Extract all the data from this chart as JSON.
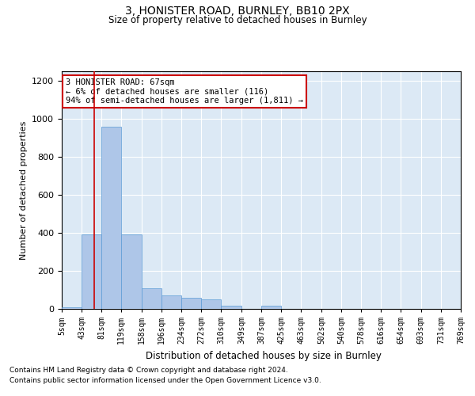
{
  "title1": "3, HONISTER ROAD, BURNLEY, BB10 2PX",
  "title2": "Size of property relative to detached houses in Burnley",
  "xlabel": "Distribution of detached houses by size in Burnley",
  "ylabel": "Number of detached properties",
  "footnote1": "Contains HM Land Registry data © Crown copyright and database right 2024.",
  "footnote2": "Contains public sector information licensed under the Open Government Licence v3.0.",
  "annotation_title": "3 HONISTER ROAD: 67sqm",
  "annotation_line1": "← 6% of detached houses are smaller (116)",
  "annotation_line2": "94% of semi-detached houses are larger (1,811) →",
  "bar_color": "#aec6e8",
  "bar_edge_color": "#5b9bd5",
  "bg_color": "#dce9f5",
  "red_line_color": "#cc0000",
  "annotation_box_color": "#ffffff",
  "annotation_box_edge": "#cc0000",
  "bins": [
    5,
    43,
    81,
    119,
    158,
    196,
    234,
    272,
    310,
    349,
    387,
    425,
    463,
    502,
    540,
    578,
    616,
    654,
    693,
    731,
    769
  ],
  "counts": [
    10,
    390,
    960,
    390,
    110,
    70,
    60,
    50,
    15,
    0,
    15,
    0,
    0,
    0,
    0,
    0,
    0,
    0,
    0,
    0
  ],
  "red_line_x": 67,
  "ylim": [
    0,
    1250
  ],
  "yticks": [
    0,
    200,
    400,
    600,
    800,
    1000,
    1200
  ]
}
